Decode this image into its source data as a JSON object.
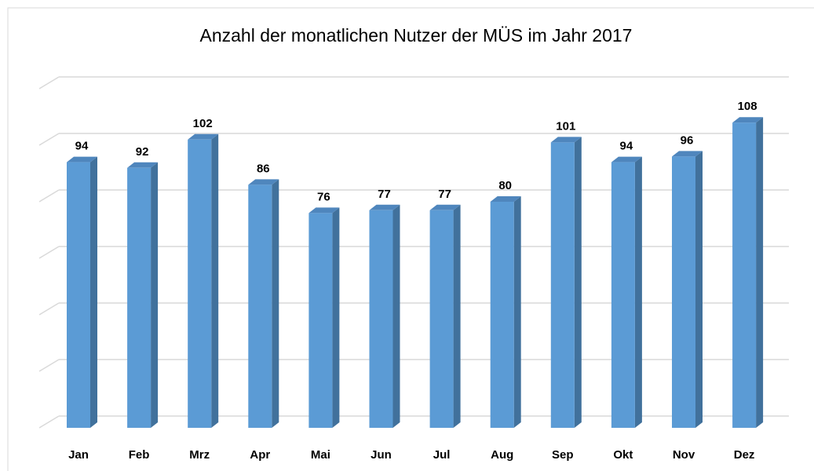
{
  "chart_data": {
    "type": "bar",
    "title": "Anzahl der monatlichen Nutzer der MÜS im Jahr 2017",
    "categories": [
      "Jan",
      "Feb",
      "Mrz",
      "Apr",
      "Mai",
      "Jun",
      "Jul",
      "Aug",
      "Sep",
      "Okt",
      "Nov",
      "Dez"
    ],
    "values": [
      94,
      92,
      102,
      86,
      76,
      77,
      77,
      80,
      101,
      94,
      96,
      108
    ],
    "color": "#5b9bd5",
    "ylim": [
      0,
      120
    ],
    "yticks": [
      0,
      20,
      40,
      60,
      80,
      100,
      120
    ],
    "grid": true
  }
}
